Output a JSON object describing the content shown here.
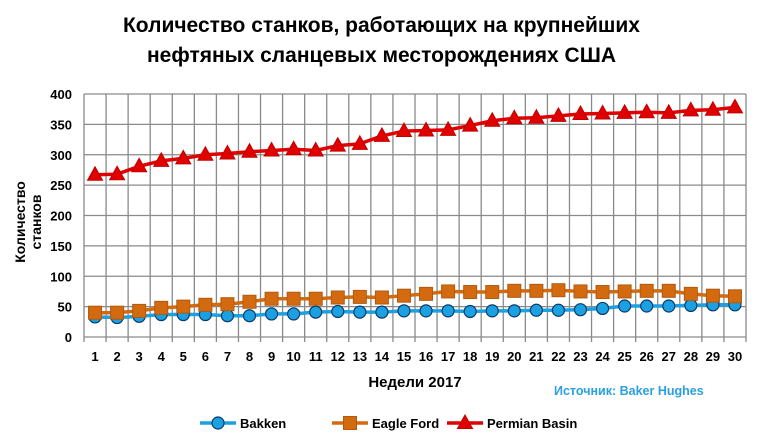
{
  "chart_data": {
    "type": "line",
    "title": [
      "Количество станков, работающих на крупнейших",
      "нефтяных сланцевых месторождениях США"
    ],
    "xlabel": "Недели 2017",
    "ylabel": "Количество станков",
    "source": "Источник: Baker Hughes",
    "ylim": [
      0,
      400
    ],
    "yticks": [
      0,
      50,
      100,
      150,
      200,
      250,
      300,
      350,
      400
    ],
    "x": [
      1,
      2,
      3,
      4,
      5,
      6,
      7,
      8,
      9,
      10,
      11,
      12,
      13,
      14,
      15,
      16,
      17,
      18,
      19,
      20,
      21,
      22,
      23,
      24,
      25,
      26,
      27,
      28,
      29,
      30
    ],
    "grid": true,
    "legend": "bottom",
    "series": [
      {
        "name": "Bakken",
        "color": "#1ba1e2",
        "marker": "circle",
        "values": [
          33,
          32,
          34,
          37,
          37,
          37,
          35,
          35,
          38,
          38,
          41,
          42,
          41,
          41,
          43,
          43,
          43,
          42,
          43,
          43,
          44,
          44,
          45,
          47,
          51,
          51,
          51,
          52,
          53,
          53
        ]
      },
      {
        "name": "Eagle Ford",
        "color": "#d46a10",
        "marker": "square",
        "values": [
          40,
          40,
          43,
          48,
          50,
          53,
          54,
          58,
          63,
          63,
          63,
          65,
          66,
          65,
          68,
          71,
          75,
          74,
          74,
          76,
          76,
          77,
          75,
          74,
          75,
          76,
          76,
          71,
          68,
          67
        ]
      },
      {
        "name": "Permian Basin",
        "color": "#e00000",
        "marker": "triangle",
        "values": [
          267,
          268,
          281,
          290,
          294,
          300,
          302,
          305,
          307,
          309,
          307,
          315,
          318,
          331,
          339,
          340,
          341,
          348,
          356,
          360,
          361,
          364,
          367,
          368,
          369,
          370,
          369,
          373,
          374,
          378
        ]
      }
    ]
  }
}
